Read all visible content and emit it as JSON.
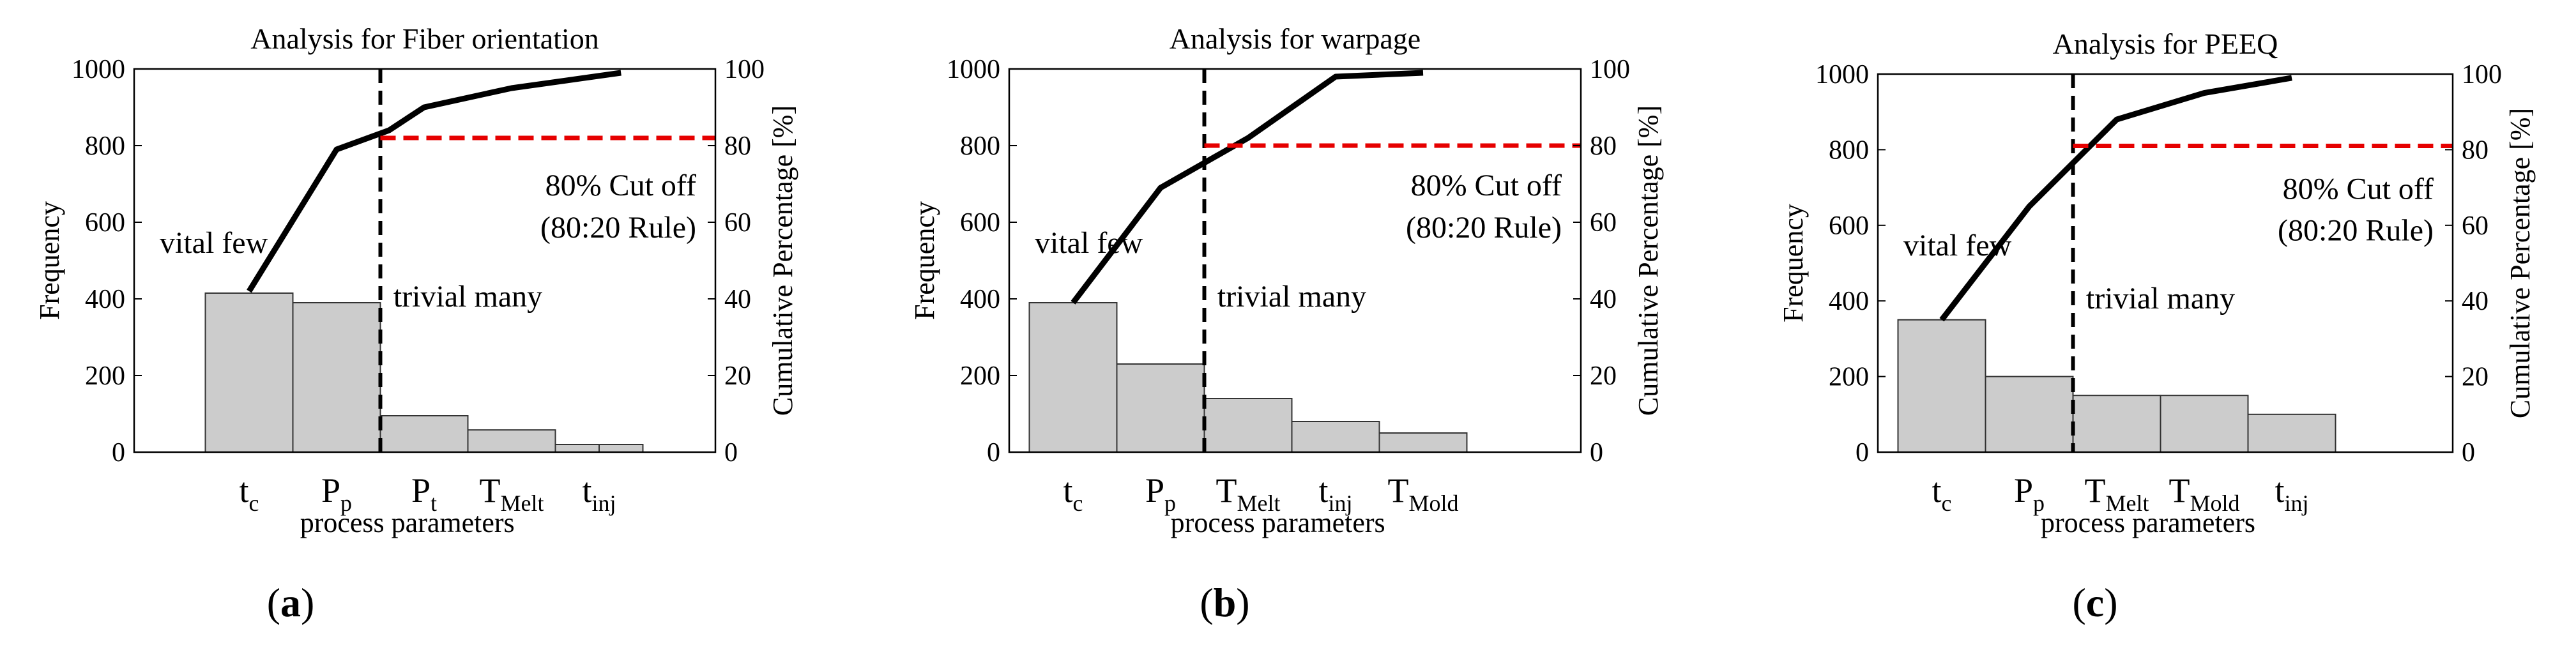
{
  "chart_data": [
    {
      "type": "bar",
      "panel": "a",
      "title": "Analysis for Fiber orientation",
      "xlabel": "process parameters",
      "ylabel": "Frequency",
      "y2label": "Cumulative Percentage [%]",
      "ylim": [
        0,
        1000
      ],
      "y2lim": [
        0,
        100
      ],
      "yticks": [
        "0",
        "200",
        "400",
        "600",
        "800",
        "1000"
      ],
      "y2ticks": [
        "0",
        "20",
        "40",
        "60",
        "80",
        "100"
      ],
      "categories": [
        {
          "main": "t",
          "sub": "c"
        },
        {
          "main": "P",
          "sub": "p"
        },
        {
          "main": "P",
          "sub": "t"
        },
        {
          "main": "T",
          "sub": "Melt"
        },
        {
          "main": "t",
          "sub": "inj"
        }
      ],
      "bars": [
        {
          "x": 1,
          "value": 415
        },
        {
          "x": 2,
          "value": 390
        },
        {
          "x": 3,
          "value": 95
        },
        {
          "x": 4,
          "value": 58
        },
        {
          "x": 4.75,
          "value": 20
        },
        {
          "x": 5.25,
          "value": 20
        }
      ],
      "cumulative": [
        {
          "x": 1,
          "percent": 42
        },
        {
          "x": 2,
          "percent": 79
        },
        {
          "x": 2.6,
          "percent": 84
        },
        {
          "x": 3,
          "percent": 90
        },
        {
          "x": 4,
          "percent": 95
        },
        {
          "x": 5.25,
          "percent": 99
        }
      ],
      "cutoff_x": 2.5,
      "cutoff_percent": 82,
      "annotations": {
        "left": "vital few",
        "right": "trivial many",
        "cutoff_line1": "80% Cut off",
        "cutoff_line2": "(80:20 Rule)"
      }
    },
    {
      "type": "bar",
      "panel": "b",
      "title": "Analysis for warpage",
      "xlabel": "process parameters",
      "ylabel": "Frequency",
      "y2label": "Cumulative Percentage [%]",
      "ylim": [
        0,
        1000
      ],
      "y2lim": [
        0,
        100
      ],
      "yticks": [
        "0",
        "200",
        "400",
        "600",
        "800",
        "1000"
      ],
      "y2ticks": [
        "0",
        "20",
        "40",
        "60",
        "80",
        "100"
      ],
      "categories": [
        {
          "main": "t",
          "sub": "c"
        },
        {
          "main": "P",
          "sub": "p"
        },
        {
          "main": "T",
          "sub": "Melt"
        },
        {
          "main": "t",
          "sub": "inj"
        },
        {
          "main": "T",
          "sub": "Mold"
        }
      ],
      "bars": [
        {
          "x": 1,
          "value": 390
        },
        {
          "x": 2,
          "value": 230
        },
        {
          "x": 3,
          "value": 140
        },
        {
          "x": 4,
          "value": 80
        },
        {
          "x": 5,
          "value": 50
        }
      ],
      "cumulative": [
        {
          "x": 1,
          "percent": 39
        },
        {
          "x": 2,
          "percent": 69
        },
        {
          "x": 3,
          "percent": 82
        },
        {
          "x": 4,
          "percent": 98
        },
        {
          "x": 5,
          "percent": 99
        }
      ],
      "cutoff_x": 2.5,
      "cutoff_percent": 80,
      "annotations": {
        "left": "vital few",
        "right": "trivial many",
        "cutoff_line1": "80% Cut off",
        "cutoff_line2": "(80:20 Rule)"
      }
    },
    {
      "type": "bar",
      "panel": "c",
      "title": "Analysis for PEEQ",
      "xlabel": "process parameters",
      "ylabel": "Frequency",
      "y2label": "Cumulative Percentage [%]",
      "ylim": [
        0,
        1000
      ],
      "y2lim": [
        0,
        100
      ],
      "yticks": [
        "0",
        "200",
        "400",
        "600",
        "800",
        "1000"
      ],
      "y2ticks": [
        "0",
        "20",
        "40",
        "60",
        "80",
        "100"
      ],
      "categories": [
        {
          "main": "t",
          "sub": "c"
        },
        {
          "main": "P",
          "sub": "p"
        },
        {
          "main": "T",
          "sub": "Melt"
        },
        {
          "main": "T",
          "sub": "Mold"
        },
        {
          "main": "t",
          "sub": "inj"
        }
      ],
      "bars": [
        {
          "x": 1,
          "value": 350
        },
        {
          "x": 2,
          "value": 200
        },
        {
          "x": 3,
          "value": 150
        },
        {
          "x": 4,
          "value": 150
        },
        {
          "x": 5,
          "value": 100
        }
      ],
      "cumulative": [
        {
          "x": 1,
          "percent": 35
        },
        {
          "x": 2,
          "percent": 65
        },
        {
          "x": 3,
          "percent": 88
        },
        {
          "x": 4,
          "percent": 95
        },
        {
          "x": 5,
          "percent": 99
        }
      ],
      "cutoff_x": 2.5,
      "cutoff_percent": 81,
      "annotations": {
        "left": "vital few",
        "right": "trivial many",
        "cutoff_line1": "80% Cut off",
        "cutoff_line2": "(80:20 Rule)"
      }
    }
  ],
  "colors": {
    "bar_fill": "#cccccc",
    "bar_stroke": "#333333",
    "cumulative_line": "#000000",
    "cutoff_line": "#e60000",
    "divider_line": "#000000"
  }
}
